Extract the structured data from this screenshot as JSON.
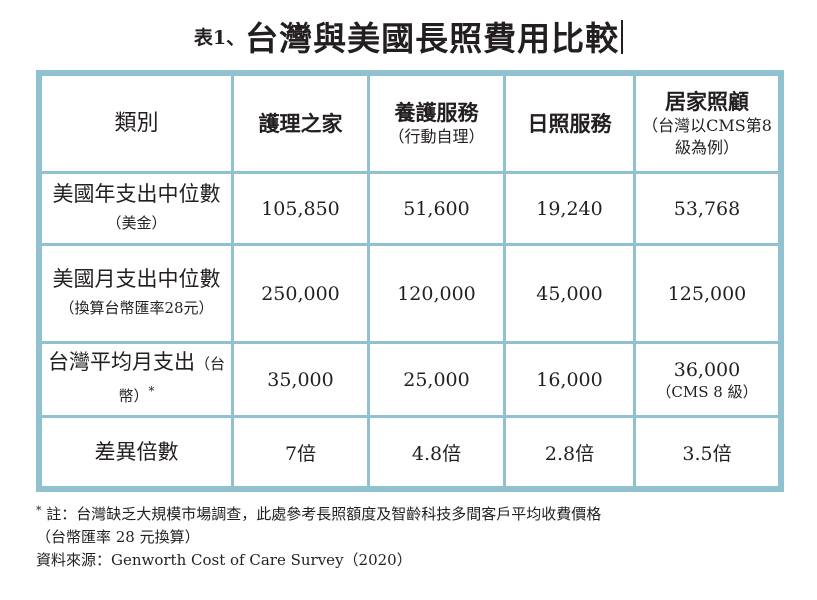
{
  "title": {
    "prefix": "表1、",
    "main": "台灣與美國長照費用比較"
  },
  "table": {
    "corner": "類別",
    "columns": [
      {
        "label": "護理之家",
        "sub": ""
      },
      {
        "label": "養護服務",
        "sub": "（行動自理）"
      },
      {
        "label": "日照服務",
        "sub": ""
      },
      {
        "label": "居家照顧",
        "sub": "（台灣以CMS第8級為例）"
      }
    ],
    "rows": [
      {
        "label_main": "美國年支出中位數",
        "label_small": "（美金）",
        "label_mark": "",
        "values": [
          "105,850",
          "51,600",
          "19,240",
          "53,768"
        ],
        "last_sub": ""
      },
      {
        "label_main": "美國月支出中位數",
        "label_small": "（換算台幣匯率28元）",
        "label_mark": "",
        "values": [
          "250,000",
          "120,000",
          "45,000",
          "125,000"
        ],
        "last_sub": ""
      },
      {
        "label_main": "台灣平均月支出",
        "label_small": "（台幣）",
        "label_mark": "*",
        "values": [
          "35,000",
          "25,000",
          "16,000",
          "36,000"
        ],
        "last_sub": "（CMS 8 級）"
      },
      {
        "label_main": "差異倍數",
        "label_small": "",
        "label_mark": "",
        "values": [
          "7倍",
          "4.8倍",
          "2.8倍",
          "3.5倍"
        ],
        "last_sub": ""
      }
    ]
  },
  "notes": {
    "mark": "*",
    "line1": " 註：台灣缺乏大規模市場調查，此處參考長照額度及智齡科技多間客戶平均收費價格",
    "line2": "（台幣匯率 28 元換算）",
    "source": "資料來源：Genworth Cost of Care Survey（2020）"
  },
  "colors": {
    "border": "#8fc1cf",
    "text": "#231f20"
  }
}
